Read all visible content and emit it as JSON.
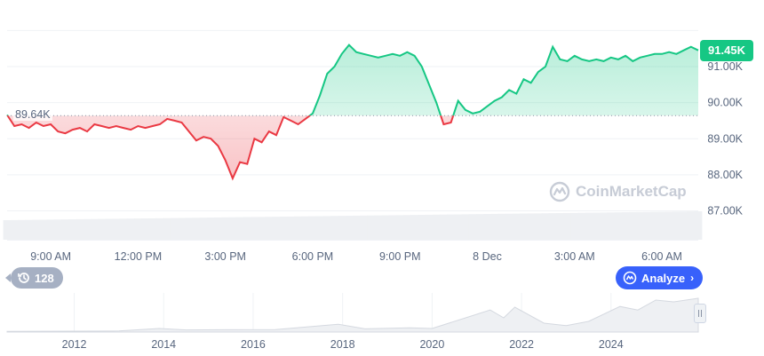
{
  "chart_data": {
    "type": "area",
    "series": [
      {
        "x": [
          "07:30",
          "07:45",
          "08:00",
          "08:15",
          "08:30",
          "08:45",
          "09:00",
          "09:15",
          "09:30",
          "09:45",
          "10:00",
          "10:15",
          "10:30",
          "10:45",
          "11:00",
          "11:15",
          "11:30",
          "11:45",
          "12:00",
          "12:15",
          "12:30",
          "12:45",
          "13:00",
          "13:15",
          "13:30",
          "13:45",
          "14:00",
          "14:15",
          "14:30",
          "14:45",
          "15:00",
          "15:15",
          "15:30",
          "15:45",
          "16:00",
          "16:15",
          "16:30",
          "16:45",
          "17:00",
          "17:15",
          "17:30",
          "17:45",
          "18:00",
          "18:15",
          "18:30",
          "18:45",
          "19:00",
          "19:15",
          "19:30",
          "19:45",
          "20:00",
          "20:15",
          "20:30",
          "20:45",
          "21:00",
          "21:15",
          "21:30",
          "21:45",
          "22:00",
          "22:15",
          "22:30",
          "22:45",
          "23:00",
          "23:15",
          "23:30",
          "23:45",
          "00:00",
          "00:15",
          "00:30",
          "00:45",
          "01:00",
          "01:15",
          "01:30",
          "01:45",
          "02:00",
          "02:15",
          "02:30",
          "02:45",
          "03:00",
          "03:15",
          "03:30",
          "03:45",
          "04:00",
          "04:15",
          "04:30",
          "04:45",
          "05:00",
          "05:15",
          "05:30",
          "05:45",
          "06:00",
          "06:15",
          "06:30",
          "06:45",
          "07:00",
          "07:15"
        ],
        "values": [
          89.66,
          89.35,
          89.4,
          89.3,
          89.45,
          89.35,
          89.4,
          89.2,
          89.15,
          89.25,
          89.3,
          89.2,
          89.4,
          89.35,
          89.3,
          89.35,
          89.3,
          89.25,
          89.35,
          89.3,
          89.35,
          89.4,
          89.55,
          89.5,
          89.45,
          89.2,
          88.95,
          89.05,
          89.0,
          88.8,
          88.4,
          87.9,
          88.35,
          88.3,
          89.0,
          88.9,
          89.2,
          89.1,
          89.6,
          89.5,
          89.4,
          89.55,
          89.7,
          90.2,
          90.8,
          91.0,
          91.35,
          91.6,
          91.4,
          91.35,
          91.3,
          91.25,
          91.3,
          91.35,
          91.3,
          91.4,
          91.3,
          91.0,
          90.5,
          90.0,
          89.4,
          89.45,
          90.05,
          89.8,
          89.7,
          89.75,
          89.9,
          90.05,
          90.15,
          90.35,
          90.25,
          90.65,
          90.55,
          90.85,
          91.0,
          91.55,
          91.2,
          91.15,
          91.3,
          91.2,
          91.15,
          91.2,
          91.15,
          91.25,
          91.2,
          91.3,
          91.15,
          91.25,
          91.3,
          91.35,
          91.35,
          91.4,
          91.35,
          91.45,
          91.55,
          91.45
        ]
      }
    ],
    "reference_value": 89.64,
    "reference_label": "89.64K",
    "current_value": 91.45,
    "current_label": "91.45K",
    "ylim": [
      86.2,
      92.6
    ],
    "y_ticks": [
      {
        "value": 87.0,
        "label": "87.00K"
      },
      {
        "value": 88.0,
        "label": "88.00K"
      },
      {
        "value": 89.0,
        "label": "89.00K"
      },
      {
        "value": 90.0,
        "label": "90.00K"
      },
      {
        "value": 91.0,
        "label": "91.00K"
      }
    ],
    "x_ticks": [
      {
        "x": "09:00",
        "label": "9:00 AM"
      },
      {
        "x": "12:00",
        "label": "12:00 PM"
      },
      {
        "x": "15:00",
        "label": "3:00 PM"
      },
      {
        "x": "18:00",
        "label": "6:00 PM"
      },
      {
        "x": "21:00",
        "label": "9:00 PM"
      },
      {
        "x": "00:00",
        "label": "8 Dec"
      },
      {
        "x": "03:00",
        "label": "3:00 AM"
      },
      {
        "x": "06:00",
        "label": "6:00 AM"
      }
    ],
    "colors": {
      "up": "#16c784",
      "down": "#ea3943",
      "grid": "#eff2f5",
      "axis_text": "#58667e",
      "volume": "#eef0f3"
    },
    "grid": true,
    "navigator": {
      "x_labels": [
        "2012",
        "2014",
        "2016",
        "2018",
        "2020",
        "2022",
        "2024"
      ],
      "year_range": [
        2010.5,
        2025.95
      ],
      "history": [
        [
          2010.5,
          0.2
        ],
        [
          2013.0,
          0.3
        ],
        [
          2013.9,
          1
        ],
        [
          2014.5,
          0.6
        ],
        [
          2016.5,
          0.7
        ],
        [
          2017.9,
          2.2
        ],
        [
          2018.5,
          0.9
        ],
        [
          2019.5,
          1.2
        ],
        [
          2020.0,
          1.0
        ],
        [
          2021.0,
          5.0
        ],
        [
          2021.3,
          6.2
        ],
        [
          2021.6,
          4.0
        ],
        [
          2021.85,
          7.0
        ],
        [
          2022.5,
          2.5
        ],
        [
          2023.0,
          1.8
        ],
        [
          2023.5,
          3.0
        ],
        [
          2024.2,
          7.2
        ],
        [
          2024.6,
          6.2
        ],
        [
          2025.0,
          9.0
        ],
        [
          2025.4,
          8.5
        ],
        [
          2025.95,
          9.5
        ]
      ]
    }
  },
  "watermark": {
    "text": "CoinMarketCap",
    "icon": "coinmarketcap-logo-icon"
  },
  "history_badge": {
    "count": "128",
    "icon": "history-icon"
  },
  "analyze_button": {
    "label": "Analyze",
    "icon": "analyze-icon",
    "chevron": "›"
  }
}
